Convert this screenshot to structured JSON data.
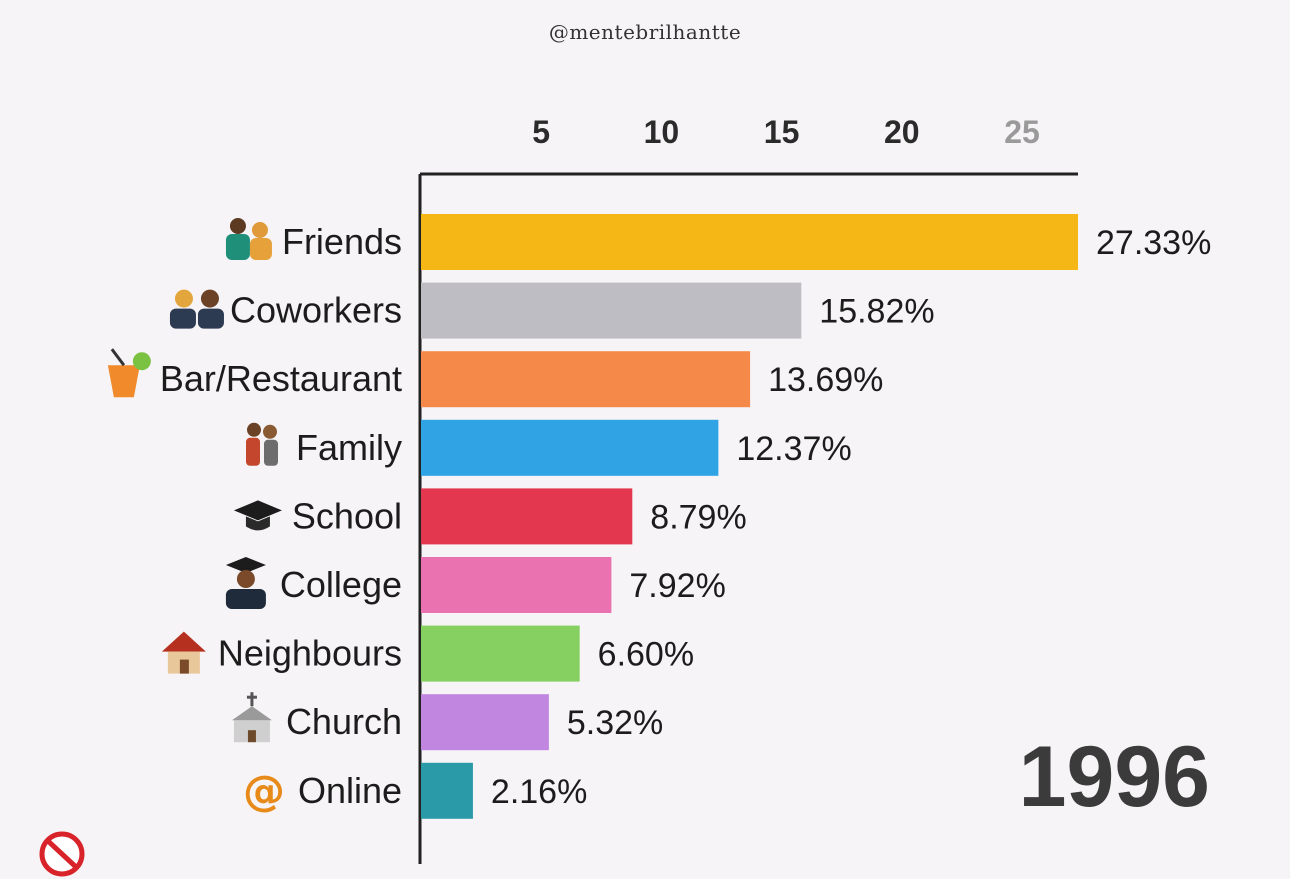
{
  "watermark": "@mentebrilhantte",
  "year": "1996",
  "chart_data": {
    "type": "bar",
    "orientation": "horizontal",
    "categories": [
      "Friends",
      "Coworkers",
      "Bar/Restaurant",
      "Family",
      "School",
      "College",
      "Neighbours",
      "Church",
      "Online"
    ],
    "values": [
      27.33,
      15.82,
      13.69,
      12.37,
      8.79,
      7.92,
      6.6,
      5.32,
      2.16
    ],
    "value_labels": [
      "27.33%",
      "15.82%",
      "13.69%",
      "12.37%",
      "8.79%",
      "7.92%",
      "6.60%",
      "5.32%",
      "2.16%"
    ],
    "colors": [
      "#f5b716",
      "#bdbdc3",
      "#f5894a",
      "#2fa3e3",
      "#e2374f",
      "#ea72b1",
      "#86d062",
      "#c086e0",
      "#2b9aa8"
    ],
    "icons": [
      "people-icon",
      "coworkers-icon",
      "cocktail-icon",
      "family-icon",
      "graduation-cap-icon",
      "graduate-icon",
      "house-icon",
      "church-icon",
      "at-sign-icon"
    ],
    "x_ticks": [
      5,
      10,
      15,
      20,
      25
    ],
    "xlim": [
      0,
      27.33
    ],
    "xaxis_position": "top",
    "grid": false,
    "title": "",
    "xlabel": "",
    "ylabel": ""
  },
  "no_entry_icon": "no-entry-icon"
}
